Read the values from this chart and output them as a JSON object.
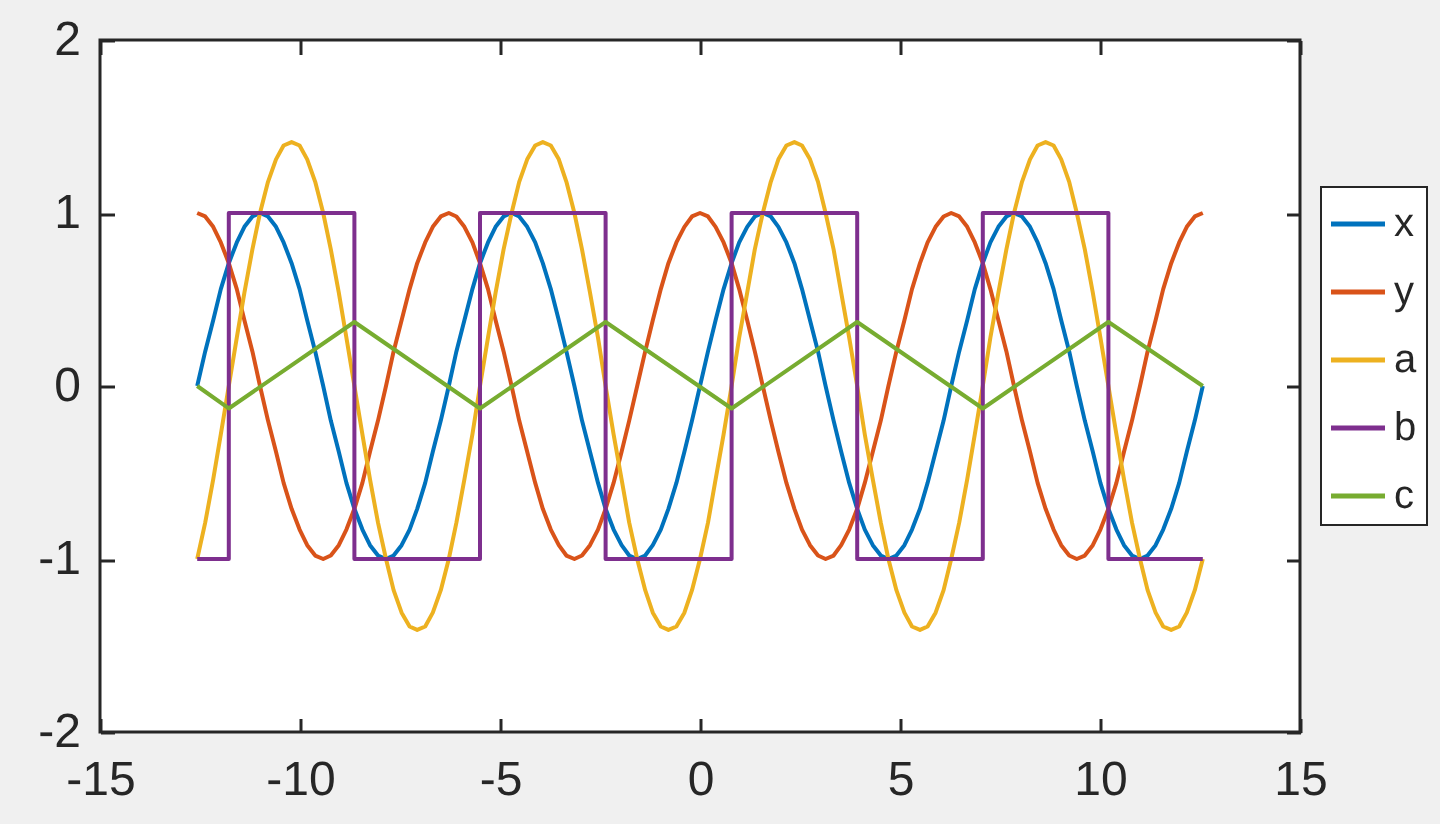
{
  "chart_data": {
    "type": "line",
    "xlim": [
      -15,
      15
    ],
    "xticks": [
      -15,
      -10,
      -5,
      0,
      5,
      10,
      15
    ],
    "ylim": [
      -2,
      2
    ],
    "yticks": [
      -2,
      -1,
      0,
      1,
      2
    ],
    "legend": "right",
    "x": [
      -12.57,
      -12.37,
      -12.17,
      -11.98,
      -11.78,
      -11.58,
      -11.39,
      -11.19,
      -11.0,
      -10.8,
      -10.6,
      -10.41,
      -10.21,
      -10.01,
      -9.82,
      -9.62,
      -9.42,
      -9.23,
      -9.03,
      -8.84,
      -8.64,
      -8.44,
      -8.25,
      -8.05,
      -7.85,
      -7.66,
      -7.46,
      -7.26,
      -7.07,
      -6.87,
      -6.68,
      -6.48,
      -6.28,
      -6.09,
      -5.89,
      -5.69,
      -5.5,
      -5.3,
      -5.11,
      -4.91,
      -4.71,
      -4.52,
      -4.32,
      -4.12,
      -3.93,
      -3.73,
      -3.53,
      -3.34,
      -3.14,
      -2.95,
      -2.75,
      -2.55,
      -2.36,
      -2.16,
      -1.96,
      -1.77,
      -1.57,
      -1.37,
      -1.18,
      -0.98,
      -0.79,
      -0.59,
      -0.39,
      -0.2,
      0,
      0.2,
      0.39,
      0.59,
      0.79,
      0.98,
      1.18,
      1.37,
      1.57,
      1.77,
      1.96,
      2.16,
      2.36,
      2.55,
      2.75,
      2.95,
      3.14,
      3.34,
      3.53,
      3.73,
      3.93,
      4.12,
      4.32,
      4.52,
      4.71,
      4.91,
      5.11,
      5.3,
      5.5,
      5.69,
      5.89,
      6.09,
      6.28,
      6.48,
      6.68,
      6.87,
      7.07,
      7.26,
      7.46,
      7.66,
      7.85,
      8.05,
      8.25,
      8.44,
      8.64,
      8.84,
      9.03,
      9.23,
      9.42,
      9.62,
      9.82,
      10.01,
      10.21,
      10.41,
      10.6,
      10.8,
      11.0,
      11.19,
      11.39,
      11.58,
      11.78,
      11.98,
      12.17,
      12.37,
      12.57
    ],
    "series": [
      {
        "name": "x",
        "color": "#0072bd",
        "values": [
          0,
          0.2,
          0.38,
          0.56,
          0.71,
          0.83,
          0.92,
          0.98,
          1,
          0.98,
          0.92,
          0.83,
          0.71,
          0.56,
          0.38,
          0.2,
          0,
          -0.2,
          -0.38,
          -0.56,
          -0.71,
          -0.83,
          -0.92,
          -0.98,
          -1,
          -0.98,
          -0.92,
          -0.83,
          -0.71,
          -0.56,
          -0.38,
          -0.2,
          0,
          0.2,
          0.38,
          0.56,
          0.71,
          0.83,
          0.92,
          0.98,
          1,
          0.98,
          0.92,
          0.83,
          0.71,
          0.56,
          0.38,
          0.2,
          0,
          -0.2,
          -0.38,
          -0.56,
          -0.71,
          -0.83,
          -0.92,
          -0.98,
          -1,
          -0.98,
          -0.92,
          -0.83,
          -0.71,
          -0.56,
          -0.38,
          -0.2,
          0,
          0.2,
          0.38,
          0.56,
          0.71,
          0.83,
          0.92,
          0.98,
          1,
          0.98,
          0.92,
          0.83,
          0.71,
          0.56,
          0.38,
          0.2,
          0,
          -0.2,
          -0.38,
          -0.56,
          -0.71,
          -0.83,
          -0.92,
          -0.98,
          -1,
          -0.98,
          -0.92,
          -0.83,
          -0.71,
          -0.56,
          -0.38,
          -0.2,
          0,
          0.2,
          0.38,
          0.56,
          0.71,
          0.83,
          0.92,
          0.98,
          1,
          0.98,
          0.92,
          0.83,
          0.71,
          0.56,
          0.38,
          0.2,
          0,
          -0.2,
          -0.38,
          -0.56,
          -0.71,
          -0.83,
          -0.92,
          -0.98,
          -1,
          -0.98,
          -0.92,
          -0.83,
          -0.71,
          -0.56,
          -0.38,
          -0.2,
          0
        ]
      },
      {
        "name": "y",
        "color": "#d95319",
        "values": [
          1,
          0.98,
          0.92,
          0.83,
          0.71,
          0.56,
          0.38,
          0.2,
          0,
          -0.2,
          -0.38,
          -0.56,
          -0.71,
          -0.83,
          -0.92,
          -0.98,
          -1,
          -0.98,
          -0.92,
          -0.83,
          -0.71,
          -0.56,
          -0.38,
          -0.2,
          0,
          0.2,
          0.38,
          0.56,
          0.71,
          0.83,
          0.92,
          0.98,
          1,
          0.98,
          0.92,
          0.83,
          0.71,
          0.56,
          0.38,
          0.2,
          0,
          -0.2,
          -0.38,
          -0.56,
          -0.71,
          -0.83,
          -0.92,
          -0.98,
          -1,
          -0.98,
          -0.92,
          -0.83,
          -0.71,
          -0.56,
          -0.38,
          -0.2,
          0,
          0.2,
          0.38,
          0.56,
          0.71,
          0.83,
          0.92,
          0.98,
          1,
          0.98,
          0.92,
          0.83,
          0.71,
          0.56,
          0.38,
          0.2,
          0,
          -0.2,
          -0.38,
          -0.56,
          -0.71,
          -0.83,
          -0.92,
          -0.98,
          -1,
          -0.98,
          -0.92,
          -0.83,
          -0.71,
          -0.56,
          -0.38,
          -0.2,
          0,
          0.2,
          0.38,
          0.56,
          0.71,
          0.83,
          0.92,
          0.98,
          1,
          0.98,
          0.92,
          0.83,
          0.71,
          0.56,
          0.38,
          0.2,
          0,
          -0.2,
          -0.38,
          -0.56,
          -0.71,
          -0.83,
          -0.92,
          -0.98,
          -1,
          -0.98,
          -0.92,
          -0.83,
          -0.71,
          -0.56,
          -0.38,
          -0.2,
          0,
          0.2,
          0.38,
          0.56,
          0.71,
          0.83,
          0.92,
          0.98,
          1
        ]
      },
      {
        "name": "a",
        "color": "#edb120",
        "values": [
          -1,
          -0.79,
          -0.54,
          -0.28,
          0,
          0.28,
          0.54,
          0.79,
          1,
          1.18,
          1.31,
          1.39,
          1.41,
          1.39,
          1.31,
          1.18,
          1,
          0.79,
          0.54,
          0.28,
          0,
          -0.28,
          -0.54,
          -0.79,
          -1,
          -1.18,
          -1.31,
          -1.39,
          -1.41,
          -1.39,
          -1.31,
          -1.18,
          -1,
          -0.79,
          -0.54,
          -0.28,
          0,
          0.28,
          0.54,
          0.79,
          1,
          1.18,
          1.31,
          1.39,
          1.41,
          1.39,
          1.31,
          1.18,
          1,
          0.79,
          0.54,
          0.28,
          0,
          -0.28,
          -0.54,
          -0.79,
          -1,
          -1.18,
          -1.31,
          -1.39,
          -1.41,
          -1.39,
          -1.31,
          -1.18,
          -1,
          -0.79,
          -0.54,
          -0.28,
          0,
          0.28,
          0.54,
          0.79,
          1,
          1.18,
          1.31,
          1.39,
          1.41,
          1.39,
          1.31,
          1.18,
          1,
          0.79,
          0.54,
          0.28,
          0,
          -0.28,
          -0.54,
          -0.79,
          -1,
          -1.18,
          -1.31,
          -1.39,
          -1.41,
          -1.39,
          -1.31,
          -1.18,
          -1,
          -0.79,
          -0.54,
          -0.28,
          0,
          0.28,
          0.54,
          0.79,
          1,
          1.18,
          1.31,
          1.39,
          1.41,
          1.39,
          1.31,
          1.18,
          1,
          0.79,
          0.54,
          0.28,
          0,
          -0.28,
          -0.54,
          -0.79,
          -1,
          -1.18,
          -1.31,
          -1.39,
          -1.41,
          -1.39,
          -1.31,
          -1.18,
          -1
        ]
      },
      {
        "name": "b",
        "color": "#7e2f8e",
        "type": "step",
        "x": [
          -12.57,
          -11.78,
          -8.64,
          -5.5,
          -2.36,
          0.79,
          3.93,
          7.07,
          10.21,
          12.57
        ],
        "values": [
          -1,
          1,
          -1,
          1,
          -1,
          1,
          -1,
          1,
          -1,
          -1
        ]
      },
      {
        "name": "c",
        "color": "#77ac30",
        "x": [
          -12.57,
          -11.78,
          -8.64,
          -5.5,
          -2.36,
          0.79,
          3.93,
          7.07,
          10.21,
          12.57
        ],
        "values": [
          0,
          -0.13,
          0.37,
          -0.13,
          0.37,
          -0.13,
          0.37,
          -0.13,
          0.37,
          0
        ]
      }
    ]
  }
}
